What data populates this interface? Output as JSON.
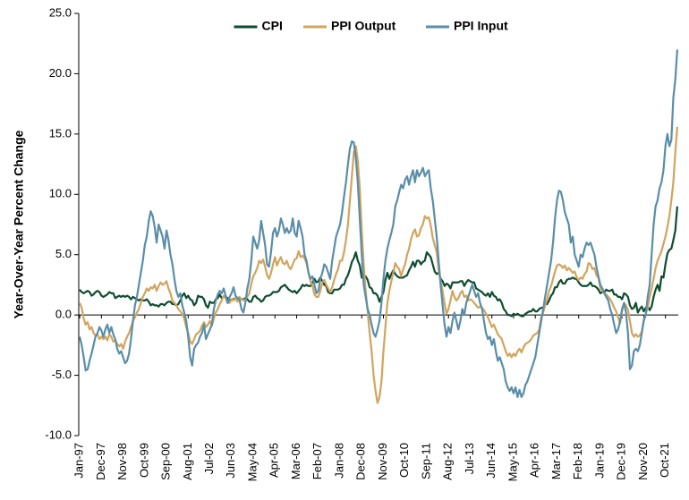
{
  "chart_data": {
    "type": "line",
    "ylabel": "Year-Over-Year Percent Change",
    "ylim": [
      -10,
      25
    ],
    "yticks": [
      {
        "value": -10,
        "label": "-10.0"
      },
      {
        "value": -5,
        "label": "-5.0"
      },
      {
        "value": 0,
        "label": "0.0"
      },
      {
        "value": 5,
        "label": "5.0"
      },
      {
        "value": 10,
        "label": "10.0"
      },
      {
        "value": 15,
        "label": "15.0"
      },
      {
        "value": 20,
        "label": "20.0"
      },
      {
        "value": 25,
        "label": "25.0"
      }
    ],
    "grid": false,
    "legend": "top",
    "categories": [
      "Jan-97",
      null,
      null,
      null,
      null,
      null,
      null,
      null,
      null,
      null,
      null,
      "Dec-97",
      null,
      null,
      null,
      null,
      null,
      null,
      null,
      null,
      null,
      null,
      "Nov-98",
      null,
      null,
      null,
      null,
      null,
      null,
      null,
      null,
      null,
      null,
      "Oct-99",
      null,
      null,
      null,
      null,
      null,
      null,
      null,
      null,
      null,
      null,
      "Sep-00",
      null,
      null,
      null,
      null,
      null,
      null,
      null,
      null,
      null,
      null,
      "Aug-01",
      null,
      null,
      null,
      null,
      null,
      null,
      null,
      null,
      null,
      null,
      "Jul-02",
      null,
      null,
      null,
      null,
      null,
      null,
      null,
      null,
      null,
      null,
      "Jun-03",
      null,
      null,
      null,
      null,
      null,
      null,
      null,
      null,
      null,
      null,
      "May-04",
      null,
      null,
      null,
      null,
      null,
      null,
      null,
      null,
      null,
      null,
      "Apr-05",
      null,
      null,
      null,
      null,
      null,
      null,
      null,
      null,
      null,
      null,
      "Mar-06",
      null,
      null,
      null,
      null,
      null,
      null,
      null,
      null,
      null,
      null,
      "Feb-07",
      null,
      null,
      null,
      null,
      null,
      null,
      null,
      null,
      null,
      null,
      "Jan-08",
      null,
      null,
      null,
      null,
      null,
      null,
      null,
      null,
      null,
      null,
      "Dec-08",
      null,
      null,
      null,
      null,
      null,
      null,
      null,
      null,
      null,
      null,
      "Nov-09",
      null,
      null,
      null,
      null,
      null,
      null,
      null,
      null,
      null,
      null,
      "Oct-10",
      null,
      null,
      null,
      null,
      null,
      null,
      null,
      null,
      null,
      null,
      "Sep-11",
      null,
      null,
      null,
      null,
      null,
      null,
      null,
      null,
      null,
      null,
      "Aug-12",
      null,
      null,
      null,
      null,
      null,
      null,
      null,
      null,
      null,
      null,
      "Jul-13",
      null,
      null,
      null,
      null,
      null,
      null,
      null,
      null,
      null,
      null,
      "Jun-14",
      null,
      null,
      null,
      null,
      null,
      null,
      null,
      null,
      null,
      null,
      "May-15",
      null,
      null,
      null,
      null,
      null,
      null,
      null,
      null,
      null,
      null,
      "Apr-16",
      null,
      null,
      null,
      null,
      null,
      null,
      null,
      null,
      null,
      null,
      "Mar-17",
      null,
      null,
      null,
      null,
      null,
      null,
      null,
      null,
      null,
      null,
      "Feb-18",
      null,
      null,
      null,
      null,
      null,
      null,
      null,
      null,
      null,
      null,
      "Jan-19",
      null,
      null,
      null,
      null,
      null,
      null,
      null,
      null,
      null,
      null,
      "Dec-19",
      null,
      null,
      null,
      null,
      null,
      null,
      null,
      null,
      null,
      null,
      "Nov-20",
      null,
      null,
      null,
      null,
      null,
      null,
      null,
      null,
      null,
      null,
      "Oct-21",
      null,
      null,
      null,
      null,
      null,
      null
    ],
    "series": [
      {
        "name": "CPI",
        "color": "#0e4d30",
        "values": [
          2.1,
          1.9,
          1.8,
          1.9,
          2.0,
          1.9,
          1.6,
          1.7,
          1.9,
          2.0,
          1.9,
          1.6,
          1.5,
          1.6,
          1.7,
          1.9,
          1.8,
          1.8,
          1.4,
          1.5,
          1.6,
          1.5,
          1.6,
          1.5,
          1.6,
          1.5,
          1.3,
          1.5,
          1.4,
          1.3,
          1.2,
          1.3,
          1.2,
          1.2,
          1.3,
          1.1,
          0.8,
          0.9,
          0.8,
          0.8,
          0.7,
          0.9,
          0.9,
          0.8,
          1.0,
          1.1,
          1.1,
          0.9,
          0.9,
          0.8,
          0.9,
          1.2,
          1.6,
          1.8,
          1.4,
          1.6,
          1.3,
          1.2,
          0.8,
          1.0,
          1.6,
          1.5,
          1.5,
          1.3,
          0.8,
          0.6,
          1.1,
          1.0,
          1.0,
          1.3,
          1.4,
          1.7,
          1.4,
          1.5,
          1.5,
          1.4,
          1.2,
          1.3,
          1.3,
          1.4,
          1.4,
          1.4,
          1.3,
          1.3,
          1.4,
          1.3,
          1.1,
          1.1,
          1.5,
          1.6,
          1.4,
          1.3,
          1.1,
          1.2,
          1.5,
          1.6,
          1.6,
          1.7,
          1.9,
          1.9,
          1.9,
          2.0,
          2.3,
          2.4,
          2.5,
          2.3,
          2.1,
          2.0,
          1.9,
          2.0,
          1.8,
          2.0,
          2.2,
          2.5,
          2.4,
          2.5,
          2.4,
          2.4,
          2.7,
          3.0,
          2.7,
          2.8,
          3.1,
          2.8,
          2.5,
          2.4,
          1.9,
          1.8,
          1.8,
          2.1,
          2.1,
          2.1,
          2.2,
          2.5,
          2.5,
          3.0,
          3.3,
          3.8,
          4.4,
          4.7,
          5.2,
          4.5,
          4.1,
          3.1,
          3.0,
          3.2,
          2.9,
          2.3,
          2.2,
          1.8,
          1.8,
          1.6,
          1.1,
          1.5,
          1.9,
          2.9,
          3.5,
          3.0,
          3.4,
          3.7,
          3.4,
          3.2,
          3.1,
          3.1,
          3.1,
          3.2,
          3.3,
          3.7,
          4.0,
          4.4,
          4.0,
          4.5,
          4.5,
          4.2,
          4.4,
          4.5,
          5.2,
          5.0,
          4.8,
          4.2,
          3.6,
          3.4,
          3.5,
          3.0,
          2.8,
          2.4,
          2.6,
          2.5,
          2.2,
          2.7,
          2.7,
          2.7,
          2.7,
          2.8,
          2.8,
          2.4,
          2.7,
          2.9,
          2.8,
          2.7,
          2.7,
          2.2,
          2.1,
          2.0,
          1.9,
          1.7,
          1.6,
          1.8,
          1.5,
          1.9,
          1.6,
          1.5,
          1.2,
          1.3,
          1.0,
          0.5,
          0.3,
          0.0,
          0.0,
          -0.1,
          0.1,
          0.0,
          0.1,
          0.0,
          -0.1,
          -0.1,
          0.1,
          0.2,
          0.3,
          0.3,
          0.5,
          0.3,
          0.3,
          0.5,
          0.6,
          0.6,
          1.0,
          0.9,
          1.2,
          1.6,
          1.8,
          2.3,
          2.3,
          2.7,
          2.9,
          2.6,
          2.6,
          2.9,
          3.0,
          3.0,
          3.1,
          3.0,
          3.0,
          2.7,
          2.5,
          2.4,
          2.4,
          2.4,
          2.5,
          2.7,
          2.4,
          2.4,
          2.3,
          2.1,
          1.8,
          1.9,
          1.9,
          2.1,
          2.0,
          2.0,
          2.1,
          1.7,
          1.7,
          1.5,
          1.5,
          1.3,
          1.8,
          1.7,
          1.5,
          0.8,
          0.5,
          0.6,
          1.0,
          0.2,
          0.5,
          0.7,
          0.3,
          0.6,
          0.7,
          0.4,
          0.7,
          1.5,
          2.1,
          2.5,
          2.0,
          3.2,
          3.1,
          4.2,
          5.1,
          5.4,
          5.5,
          6.2,
          7.0,
          9.0
        ]
      },
      {
        "name": "PPI Output",
        "color": "#d2a45e",
        "values": [
          1.0,
          0.6,
          -0.3,
          -0.8,
          -0.6,
          -1.2,
          -1.0,
          -1.5,
          -1.7,
          -1.6,
          -2.0,
          -1.8,
          -2.0,
          -1.8,
          -2.1,
          -1.6,
          -1.8,
          -2.2,
          -2.1,
          -2.4,
          -2.6,
          -2.4,
          -2.8,
          -2.2,
          -1.8,
          -1.5,
          -1.0,
          -0.5,
          -0.2,
          0.2,
          0.5,
          1.0,
          1.5,
          1.8,
          2.2,
          2.0,
          2.3,
          2.2,
          2.5,
          2.0,
          2.4,
          2.7,
          2.5,
          2.6,
          2.8,
          2.2,
          1.8,
          1.2,
          1.0,
          0.8,
          0.5,
          0.3,
          0.1,
          -0.3,
          -1.0,
          -1.5,
          -2.2,
          -2.4,
          -2.0,
          -1.6,
          -1.5,
          -1.3,
          -0.9,
          -0.6,
          -1.0,
          -0.8,
          -0.5,
          -0.9,
          -0.3,
          0.2,
          0.5,
          0.9,
          1.2,
          1.6,
          1.4,
          1.0,
          1.0,
          1.3,
          1.2,
          1.4,
          1.1,
          1.5,
          1.3,
          1.2,
          1.3,
          1.5,
          1.8,
          2.6,
          3.2,
          3.5,
          3.9,
          4.5,
          4.3,
          4.6,
          4.0,
          3.3,
          3.0,
          3.5,
          4.2,
          4.8,
          4.1,
          4.5,
          4.8,
          4.3,
          4.2,
          4.5,
          4.0,
          3.8,
          4.2,
          4.6,
          4.7,
          5.3,
          4.8,
          4.9,
          4.7,
          4.3,
          3.5,
          2.8,
          2.4,
          1.7,
          1.5,
          1.5,
          2.0,
          2.7,
          2.9,
          2.5,
          2.2,
          1.9,
          2.3,
          2.9,
          3.4,
          3.8,
          4.5,
          4.5,
          5.2,
          6.2,
          7.5,
          9.5,
          11.5,
          13.5,
          14.0,
          12.8,
          10.5,
          7.0,
          4.2,
          2.0,
          0.3,
          -1.5,
          -3.0,
          -5.0,
          -6.3,
          -7.3,
          -6.8,
          -5.5,
          -3.0,
          -1.0,
          1.0,
          2.0,
          2.8,
          3.5,
          4.3,
          4.0,
          3.8,
          3.2,
          3.8,
          4.2,
          5.0,
          5.5,
          6.3,
          6.8,
          7.1,
          6.5,
          6.6,
          7.2,
          7.5,
          8.2,
          8.0,
          8.1,
          7.4,
          6.4,
          5.8,
          5.2,
          3.7,
          2.8,
          2.0,
          0.9,
          0.1,
          0.5,
          1.2,
          2.0,
          1.5,
          1.2,
          1.4,
          1.8,
          2.0,
          1.5,
          1.6,
          1.2,
          1.3,
          1.2,
          1.0,
          0.8,
          0.6,
          0.7,
          0.6,
          0.4,
          0.1,
          -0.2,
          -0.6,
          -1.0,
          -0.8,
          -1.2,
          -1.6,
          -1.8,
          -2.0,
          -2.5,
          -3.0,
          -3.4,
          -3.2,
          -3.5,
          -3.2,
          -3.4,
          -3.0,
          -2.8,
          -3.1,
          -2.7,
          -2.4,
          -2.3,
          -2.2,
          -2.0,
          -1.7,
          -1.6,
          -1.5,
          -1.2,
          -0.2,
          0.2,
          0.8,
          1.3,
          2.0,
          2.4,
          3.0,
          3.6,
          4.1,
          4.2,
          4.1,
          3.9,
          4.1,
          3.7,
          3.9,
          3.7,
          3.5,
          3.6,
          3.1,
          2.9,
          3.1,
          3.0,
          3.4,
          3.6,
          4.3,
          4.2,
          3.8,
          3.9,
          3.3,
          3.1,
          2.2,
          2.0,
          1.8,
          1.7,
          1.5,
          1.3,
          1.0,
          0.6,
          0.3,
          -0.2,
          -0.7,
          0.3,
          1.0,
          0.8,
          0.4,
          -0.5,
          -1.5,
          -1.8,
          -1.6,
          -1.8,
          -1.7,
          -1.4,
          -0.4,
          0.1,
          0.6,
          1.5,
          2.2,
          3.0,
          3.9,
          4.5,
          4.9,
          5.3,
          5.9,
          6.5,
          7.3,
          8.2,
          9.5,
          11.0,
          13.5,
          15.6
        ]
      },
      {
        "name": "PPI Input",
        "color": "#5a8ea8",
        "values": [
          -1.8,
          -2.5,
          -3.5,
          -4.6,
          -4.5,
          -3.8,
          -3.2,
          -2.5,
          -1.8,
          -1.5,
          -1.0,
          -1.3,
          -1.8,
          -1.2,
          -0.8,
          -1.5,
          -1.0,
          -1.6,
          -2.0,
          -2.8,
          -3.2,
          -3.0,
          -3.5,
          -4.0,
          -3.8,
          -3.2,
          -2.0,
          -0.5,
          0.8,
          1.5,
          2.5,
          3.5,
          4.5,
          5.8,
          6.5,
          7.8,
          8.6,
          8.2,
          7.3,
          6.0,
          7.5,
          7.0,
          6.5,
          5.5,
          7.0,
          6.2,
          5.0,
          4.2,
          3.0,
          2.0,
          1.5,
          1.8,
          0.8,
          0.2,
          -0.5,
          -1.8,
          -3.5,
          -4.2,
          -2.8,
          -2.5,
          -2.3,
          -1.8,
          -1.5,
          -0.8,
          -2.0,
          -1.6,
          -1.2,
          -0.8,
          0.5,
          1.2,
          1.7,
          2.0,
          1.8,
          2.2,
          1.6,
          1.0,
          1.5,
          1.8,
          2.3,
          1.6,
          1.4,
          1.3,
          0.5,
          0.2,
          1.0,
          2.2,
          3.0,
          4.5,
          6.5,
          6.0,
          5.5,
          6.2,
          7.8,
          6.8,
          5.8,
          4.2,
          4.0,
          5.2,
          6.8,
          7.2,
          6.5,
          7.0,
          8.0,
          7.5,
          6.8,
          7.2,
          6.8,
          7.0,
          8.0,
          6.8,
          6.5,
          7.8,
          7.2,
          6.5,
          5.0,
          4.5,
          3.5,
          3.0,
          3.2,
          2.5,
          1.8,
          2.0,
          3.0,
          3.5,
          4.2,
          4.0,
          3.5,
          3.0,
          4.5,
          5.5,
          6.5,
          7.0,
          7.5,
          8.5,
          9.8,
          11.0,
          12.5,
          13.8,
          14.4,
          14.3,
          13.0,
          11.0,
          8.0,
          5.0,
          2.5,
          1.5,
          0.5,
          0.0,
          -0.8,
          -1.5,
          -1.8,
          -1.2,
          -0.5,
          1.0,
          3.0,
          4.5,
          5.5,
          6.2,
          6.8,
          7.5,
          9.0,
          9.5,
          10.2,
          10.8,
          10.5,
          11.2,
          11.5,
          10.8,
          11.5,
          12.0,
          11.0,
          12.0,
          11.5,
          11.8,
          12.2,
          11.5,
          11.8,
          12.0,
          10.5,
          9.5,
          8.0,
          6.5,
          4.5,
          2.5,
          0.8,
          -0.8,
          -1.8,
          -1.0,
          -1.5,
          -0.5,
          0.2,
          -0.5,
          -1.2,
          -0.5,
          0.5,
          0.0,
          1.0,
          1.5,
          2.0,
          2.5,
          2.0,
          1.5,
          1.8,
          1.0,
          0.5,
          -0.5,
          -1.5,
          -2.0,
          -1.8,
          -2.5,
          -2.0,
          -3.0,
          -3.8,
          -3.5,
          -4.0,
          -4.5,
          -5.5,
          -6.0,
          -6.3,
          -6.0,
          -6.5,
          -6.0,
          -6.8,
          -6.2,
          -6.8,
          -6.5,
          -5.8,
          -5.5,
          -5.0,
          -4.5,
          -4.0,
          -3.5,
          -2.5,
          -1.5,
          -0.5,
          0.5,
          1.5,
          2.5,
          3.5,
          4.5,
          6.0,
          8.0,
          9.5,
          10.3,
          10.2,
          9.5,
          8.5,
          8.0,
          7.5,
          6.0,
          6.5,
          5.0,
          4.5,
          4.0,
          5.0,
          4.8,
          5.5,
          6.0,
          5.8,
          6.0,
          5.5,
          5.0,
          4.0,
          3.2,
          2.5,
          2.2,
          1.8,
          1.5,
          1.2,
          0.5,
          0.0,
          -0.8,
          -1.5,
          -1.2,
          -0.5,
          0.5,
          1.0,
          0.2,
          -1.5,
          -4.5,
          -4.2,
          -3.0,
          -2.8,
          -3.0,
          -2.5,
          -1.5,
          -0.5,
          0.0,
          1.5,
          2.5,
          5.0,
          7.5,
          9.0,
          9.5,
          10.5,
          11.0,
          12.0,
          14.0,
          15.0,
          14.0,
          14.5,
          18.0,
          19.5,
          22.0
        ]
      }
    ]
  }
}
